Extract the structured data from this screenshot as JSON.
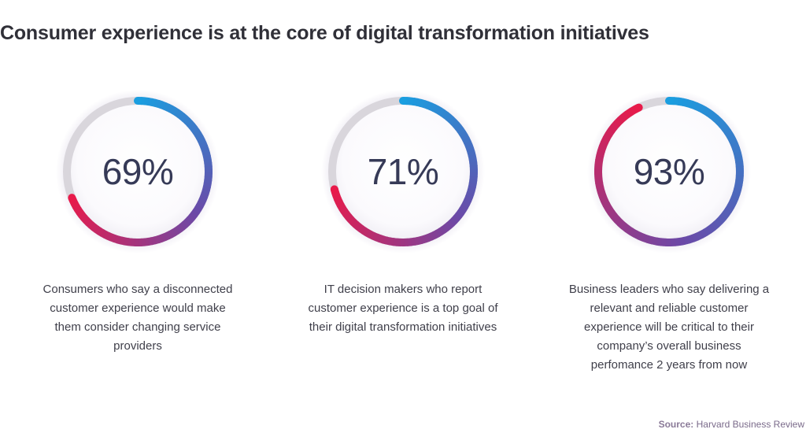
{
  "title": "Consumer experience is at the core of digital transformation initiatives",
  "chart_data": {
    "type": "gauge",
    "title": "Consumer experience is at the core of digital transformation initiatives",
    "unit": "%",
    "gauges": [
      {
        "value": 69,
        "label": "69%",
        "caption": "Consumers who say a disconnected customer experience would make them consider changing service providers"
      },
      {
        "value": 71,
        "label": "71%",
        "caption": "IT decision makers who report customer experience is a top goal of their digital transformation initiatives"
      },
      {
        "value": 93,
        "label": "93%",
        "caption": "Business leaders who say delivering a relevant and reliable customer experience will be critical to their company’s overall business perfomance 2 years from now"
      }
    ],
    "colors": {
      "gradient_start": "#1a9ee0",
      "gradient_mid": "#6a4aa8",
      "gradient_end": "#e81a4a",
      "track": "#d9d6dc"
    }
  },
  "source": {
    "label": "Source:",
    "text": "Harvard Business Review"
  }
}
